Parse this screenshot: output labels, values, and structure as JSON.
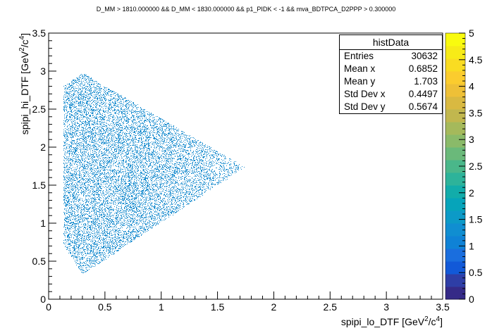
{
  "title": "D_MM > 1810.000000 && D_MM < 1830.000000 && p1_PIDK < -1 && mva_BDTPCA_D2PPP > 0.300000",
  "chart_data": {
    "type": "scatter",
    "title": "D_MM > 1810.000000 && D_MM < 1830.000000 && p1_PIDK < -1 && mva_BDTPCA_D2PPP > 0.300000",
    "xlabel": "spipi_lo_DTF [GeV²/c⁴]",
    "ylabel": "spipi_hi_DTF [GeV²/c⁴]",
    "xlabel_base": "spipi_lo_DTF [GeV",
    "ylabel_base": "spipi_hi_DTF [GeV",
    "unit_sup": "2",
    "unit_mid": "/c",
    "unit_sup2": "4",
    "unit_end": "]",
    "xlim": [
      0,
      3.5
    ],
    "ylim": [
      0,
      3.5
    ],
    "xticks": [
      "0",
      "0.5",
      "1",
      "1.5",
      "2",
      "2.5",
      "3",
      "3.5"
    ],
    "yticks": [
      "0",
      "0.5",
      "1",
      "1.5",
      "2",
      "2.5",
      "3",
      "3.5"
    ],
    "xtick_values": [
      0,
      0.5,
      1,
      1.5,
      2,
      2.5,
      3,
      3.5
    ],
    "ytick_values": [
      0,
      0.5,
      1,
      1.5,
      2,
      2.5,
      3,
      3.5
    ],
    "region_vertices": [
      [
        0.13,
        2.8
      ],
      [
        0.3,
        2.98
      ],
      [
        1.74,
        1.74
      ],
      [
        0.3,
        0.33
      ],
      [
        0.13,
        0.72
      ]
    ],
    "point_color": "#1f8fd0",
    "colorbar": {
      "range": [
        0,
        5
      ],
      "ticks": [
        "0",
        "0.5",
        "1",
        "1.5",
        "2",
        "2.5",
        "3",
        "3.5",
        "4",
        "4.5",
        "5"
      ],
      "tick_values": [
        0,
        0.5,
        1,
        1.5,
        2,
        2.5,
        3,
        3.5,
        4,
        4.5,
        5
      ],
      "colors": [
        "#352a87",
        "#2e3ea6",
        "#1259d8",
        "#1a6ede",
        "#0f82d6",
        "#108ed1",
        "#0c9ac7",
        "#06a4ba",
        "#12acaa",
        "#2db39a",
        "#4ab78a",
        "#6ab97a",
        "#8aba69",
        "#a5b95b",
        "#c1b74e",
        "#d9b941",
        "#eec037",
        "#fbcc2e",
        "#f9dc22",
        "#f7eb17",
        "#f9fb0e"
      ]
    },
    "grid": false
  },
  "stats": {
    "name": "histData",
    "rows": [
      {
        "label": "Entries",
        "value": "30632"
      },
      {
        "label": "Mean x",
        "value": "0.6852"
      },
      {
        "label": "Mean y",
        "value": "1.703"
      },
      {
        "label": "Std Dev x",
        "value": "0.4497"
      },
      {
        "label": "Std Dev y",
        "value": "0.5674"
      }
    ]
  }
}
